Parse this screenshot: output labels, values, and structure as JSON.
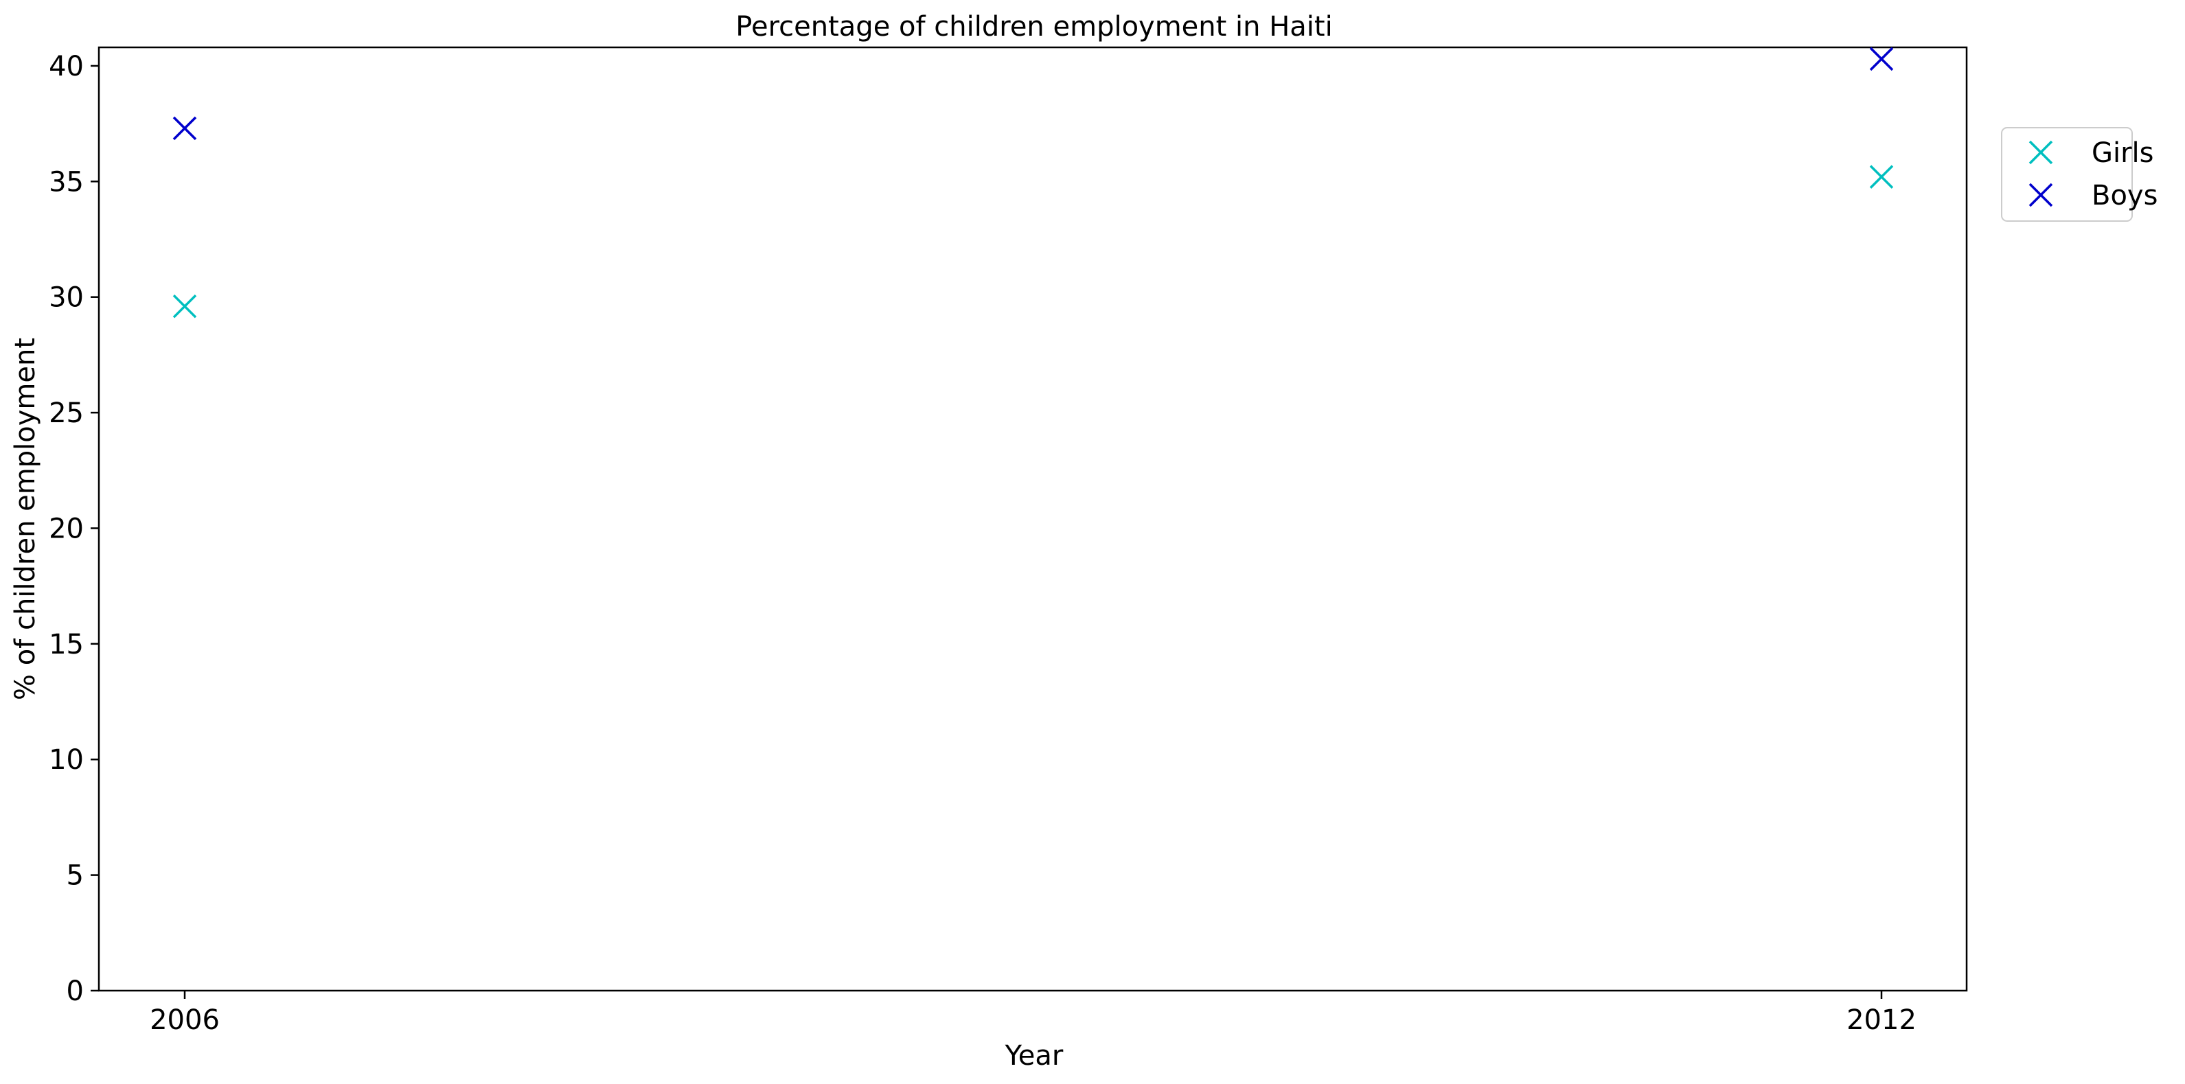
{
  "chart_data": {
    "type": "scatter",
    "title": "Percentage of children employment in Haiti",
    "xlabel": "Year",
    "ylabel": "% of children employment",
    "x_categories": [
      "2006",
      "2012"
    ],
    "ylim": [
      0,
      40.8
    ],
    "y_ticks": [
      0,
      5,
      10,
      15,
      20,
      25,
      30,
      35,
      40
    ],
    "grid": false,
    "legend_position": "upper right, outside plot",
    "marker": "x",
    "series": [
      {
        "name": "Girls",
        "color": "#00bfbf",
        "values": [
          29.6,
          35.2
        ]
      },
      {
        "name": "Boys",
        "color": "#0000cc",
        "values": [
          37.3,
          40.3
        ]
      }
    ]
  }
}
